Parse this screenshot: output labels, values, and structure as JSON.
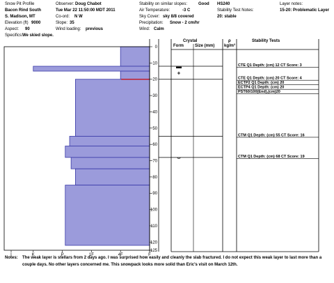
{
  "header": {
    "col1": {
      "line1": "Snow Pit Profile",
      "line2": "Bacon Rind South",
      "line3": "S. Madison, MT",
      "elevation_label": "Elevation (ft)",
      "elevation_value": "9000",
      "aspect_label": "Aspect:",
      "aspect_value": "90",
      "specifics_label": "Specifics:",
      "specifics_value": "We skied slope."
    },
    "col2": {
      "observer_label": "Observer:",
      "observer_value": "Doug Chabot",
      "date": "Tue Mar 22 11:50:00 MDT 2011",
      "coord_label": "Co-ord:",
      "coord_value": "N W",
      "slope_label": "Slope:",
      "slope_value": "35",
      "wind_label": "Wind loading:",
      "wind_value": "previous"
    },
    "col3": {
      "stability_label": "Stability on similar slopes:",
      "stability_value": "Good",
      "air_label": "Air Temperature:",
      "air_value": "-3 C",
      "sky_label": "Sky Cover:",
      "sky_value": "sky 8/8 covered",
      "precip_label": "Precipitation:",
      "precip_value": "Snow - 2 cm/hr",
      "wind_label": "Wind:",
      "wind_value": "Calm"
    },
    "col4": {
      "hs": "HS240",
      "stability_notes_label": "Stability Test Notes:",
      "stability_notes_value": "20: stable"
    },
    "col5": {
      "layer_notes_label": "Layer notes:",
      "layer_notes_value": "15-20: Problematic Layer"
    }
  },
  "table_headers": {
    "crystal": "Crystal",
    "form": "Form",
    "size": "Size (mm)",
    "rho": "ρ",
    "rho_unit": "kg/m³",
    "stability_tests": "Stability Tests"
  },
  "hardness_axis": {
    "labels": [
      "I",
      "K",
      "P",
      "1F",
      "4F",
      "F"
    ]
  },
  "depth_axis": {
    "labels": [
      "0",
      "10",
      "20",
      "30",
      "40",
      "50",
      "60",
      "70",
      "80",
      "90",
      "100",
      "110",
      "120",
      "125"
    ]
  },
  "hardness_profile": {
    "colors": {
      "fill": "#9b9bdb",
      "edge": "#3a3aa8",
      "marker": "#d01010"
    },
    "max_depth": 125,
    "layers": [
      {
        "from": 0,
        "to": 12,
        "hardness": 1.0
      },
      {
        "from": 12,
        "to": 15,
        "hardness": 4.0
      },
      {
        "from": 15,
        "to": 20,
        "hardness": 1.0
      },
      {
        "from": 20,
        "to": 55,
        "hardness": 2.55
      },
      {
        "from": 55,
        "to": 61,
        "hardness": 2.75
      },
      {
        "from": 61,
        "to": 68,
        "hardness": 2.9
      },
      {
        "from": 68,
        "to": 75,
        "hardness": 2.7
      },
      {
        "from": 75,
        "to": 85,
        "hardness": 2.55
      },
      {
        "from": 85,
        "to": 122,
        "hardness": 2.9
      }
    ],
    "marker_depth": 20
  },
  "crystals": [
    {
      "depth": 12,
      "symbol": "▬"
    },
    {
      "depth": 16,
      "symbol": "+"
    },
    {
      "depth": 68,
      "symbol": "⌣"
    }
  ],
  "stability_tests": [
    {
      "depth": 12,
      "label": "CTE Q1 Depth: (cm) 12 CT Score: 3"
    },
    {
      "depth": 20,
      "label": "CTE Q1 Depth: (cm) 20 CT Score: 4"
    },
    {
      "depth": 20,
      "label": "ECTP2 Q1 Depth: (cm) 20"
    },
    {
      "depth": 20,
      "label": "ECTP4 Q1 Depth: (cm) 20"
    },
    {
      "depth": 20,
      "label": "PST60/100(End),(cm)20"
    },
    {
      "depth": 55,
      "label": "CTM Q1 Depth: (cm) 55 CT Score: 16"
    },
    {
      "depth": 68,
      "label": "CTM Q1 Depth: (cm) 68 CT Score: 19"
    }
  ],
  "notes": {
    "label": "Notes:",
    "line1": "The weak layer is stellars from 2 days ago.  I was surprised how easily and cleanly the slab fractured. I do not expect this weak layer to last more than a",
    "line2": "couple days.  No other layers concerned me.  This snowpack looks more solid than Eric's visit on March 12th."
  }
}
